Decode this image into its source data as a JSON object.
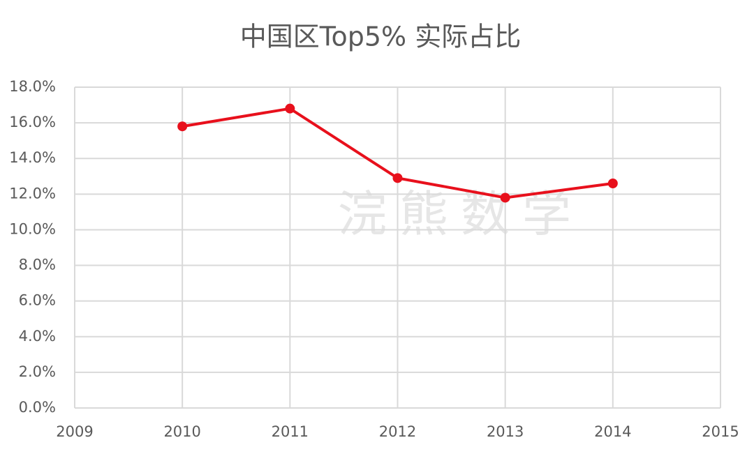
{
  "chart_data": {
    "type": "line",
    "title": "中国区Top5% 实际占比",
    "watermark": "浣熊数学",
    "x": [
      2010,
      2011,
      2012,
      2013,
      2014
    ],
    "series": [
      {
        "name": "Top5%",
        "color": "#e8101c",
        "values": [
          15.8,
          16.8,
          12.9,
          11.8,
          12.6
        ]
      }
    ],
    "xlim": [
      2009,
      2015
    ],
    "xticks": [
      2009,
      2010,
      2011,
      2012,
      2013,
      2014,
      2015
    ],
    "ylim": [
      0,
      18
    ],
    "yticks": [
      {
        "value": 0,
        "label": "0.0%"
      },
      {
        "value": 2,
        "label": "2.0%"
      },
      {
        "value": 4,
        "label": "4.0%"
      },
      {
        "value": 6,
        "label": "6.0%"
      },
      {
        "value": 8,
        "label": "8.0%"
      },
      {
        "value": 10,
        "label": "10.0%"
      },
      {
        "value": 12,
        "label": "12.0%"
      },
      {
        "value": 14,
        "label": "14.0%"
      },
      {
        "value": 16,
        "label": "16.0%"
      },
      {
        "value": 18,
        "label": "18.0%"
      }
    ],
    "grid": true
  }
}
